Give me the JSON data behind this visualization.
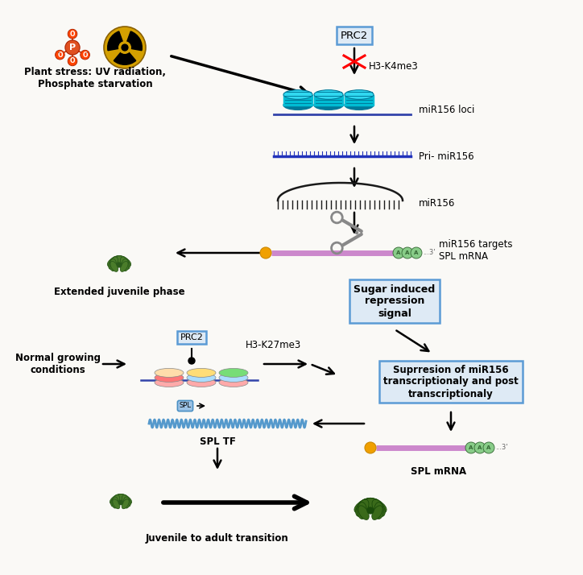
{
  "bg_color": "#faf9f6",
  "box_fill": "#deeaf5",
  "box_edge": "#5b9bd5",
  "histone_color": "#00bcd4",
  "pri_mirna_color": "#2222aa",
  "mrna_body_color": "#cc88cc",
  "mrna_cap_color": "#f0a000",
  "mrna_tail_color": "#88cc88",
  "scissors_color": "#888888",
  "plant_color": "#4a7c2a",
  "prc2_box_text": "PRC2",
  "h3k4me3_text": "H3-K4me3",
  "mir156_loci_text": "miR156 loci",
  "pri_mir156_text": "Pri- miR156",
  "mir156_text": "miR156",
  "mir156_targets_text": "miR156 targets\nSPL mRNA",
  "extended_juvenile_text": "Extended juvenile phase",
  "normal_growing_text": "Normal growing\nconditions",
  "h3k27me3_text": "H3-K27me3",
  "sugar_box_text": "Sugar induced\nrepression\nsignal",
  "suppression_box_text": "Suprresion of miR156\ntranscriptionaly and post\ntranscriptionaly",
  "spl_tf_text": "SPL TF",
  "spl_mrna_text": "SPL mRNA",
  "juvenile_adult_text": "Juvenile to adult transition",
  "plant_stress_text": "Plant stress: UV radiation,\nPhosphate starvation",
  "stress_p_color": "#e05020",
  "stress_rad_color": "#d4a000"
}
